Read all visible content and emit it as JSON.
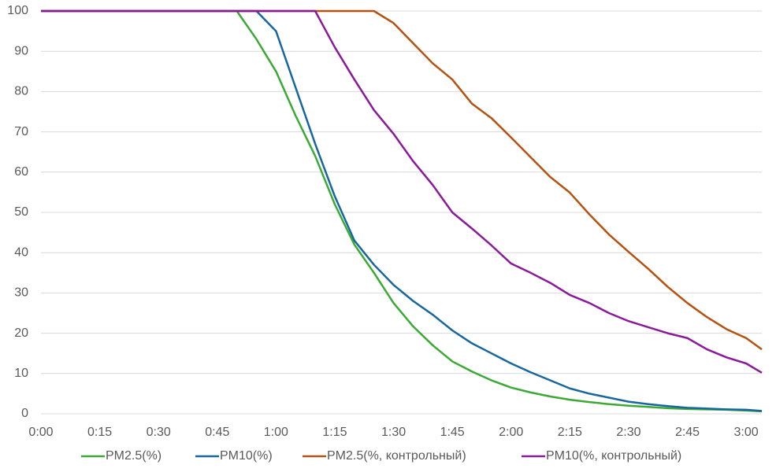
{
  "chart_data": {
    "type": "line",
    "x": [
      0,
      5,
      10,
      15,
      20,
      25,
      30,
      35,
      40,
      45,
      50,
      55,
      60,
      65,
      70,
      75,
      80,
      85,
      90,
      95,
      100,
      105,
      110,
      115,
      120,
      125,
      130,
      135,
      140,
      145,
      150,
      155,
      160,
      165,
      170,
      175,
      180,
      184
    ],
    "series": [
      {
        "name": "PM2.5(%)",
        "color": "#3aaa35",
        "values": [
          100,
          100,
          100,
          100,
          100,
          100,
          100,
          100,
          100,
          100,
          100,
          93,
          85,
          74,
          64,
          52,
          42,
          35,
          27.5,
          21.7,
          17,
          13,
          10.5,
          8.3,
          6.5,
          5.3,
          4.3,
          3.5,
          2.9,
          2.4,
          2,
          1.7,
          1.4,
          1.2,
          1.1,
          1,
          0.8,
          0.6
        ]
      },
      {
        "name": "PM10(%)",
        "color": "#17679e",
        "values": [
          100,
          100,
          100,
          100,
          100,
          100,
          100,
          100,
          100,
          100,
          100,
          100,
          95,
          81,
          67,
          54,
          43,
          37,
          32,
          28,
          24.6,
          20.7,
          17.5,
          15,
          12.5,
          10.3,
          8.3,
          6.3,
          5,
          4,
          3,
          2.4,
          1.9,
          1.5,
          1.3,
          1.1,
          1,
          0.7
        ]
      },
      {
        "name": "PM2.5(%, контрольный)",
        "color": "#b5520f",
        "values": [
          100,
          100,
          100,
          100,
          100,
          100,
          100,
          100,
          100,
          100,
          100,
          100,
          100,
          100,
          100,
          100,
          100,
          100,
          97,
          92,
          87,
          83,
          77,
          73.4,
          68.6,
          63.7,
          58.8,
          54.9,
          49.5,
          44.5,
          40.2,
          36,
          31.5,
          27.5,
          24,
          21,
          18.8,
          16
        ]
      },
      {
        "name": "PM10(%, контрольный)",
        "color": "#8b1a9b",
        "values": [
          100,
          100,
          100,
          100,
          100,
          100,
          100,
          100,
          100,
          100,
          100,
          100,
          100,
          100,
          100,
          91,
          83,
          75.4,
          69.5,
          62.7,
          56.8,
          50,
          46,
          41.8,
          37.3,
          35,
          32.5,
          29.5,
          27.5,
          25,
          23,
          21.5,
          20,
          18.8,
          16,
          14,
          12.5,
          10.2
        ]
      }
    ],
    "xlim": [
      0,
      184
    ],
    "xticks": [
      {
        "value": 0,
        "label": "0:00"
      },
      {
        "value": 15,
        "label": "0:15"
      },
      {
        "value": 30,
        "label": "0:30"
      },
      {
        "value": 45,
        "label": "0:45"
      },
      {
        "value": 60,
        "label": "1:00"
      },
      {
        "value": 75,
        "label": "1:15"
      },
      {
        "value": 90,
        "label": "1:30"
      },
      {
        "value": 105,
        "label": "1:45"
      },
      {
        "value": 120,
        "label": "2:00"
      },
      {
        "value": 135,
        "label": "2:15"
      },
      {
        "value": 150,
        "label": "2:30"
      },
      {
        "value": 165,
        "label": "2:45"
      },
      {
        "value": 180,
        "label": "3:00"
      }
    ],
    "ylim": [
      0,
      100
    ],
    "yticks": [
      0,
      10,
      20,
      30,
      40,
      50,
      60,
      70,
      80,
      90,
      100
    ],
    "grid": true,
    "legend": "bottom"
  }
}
